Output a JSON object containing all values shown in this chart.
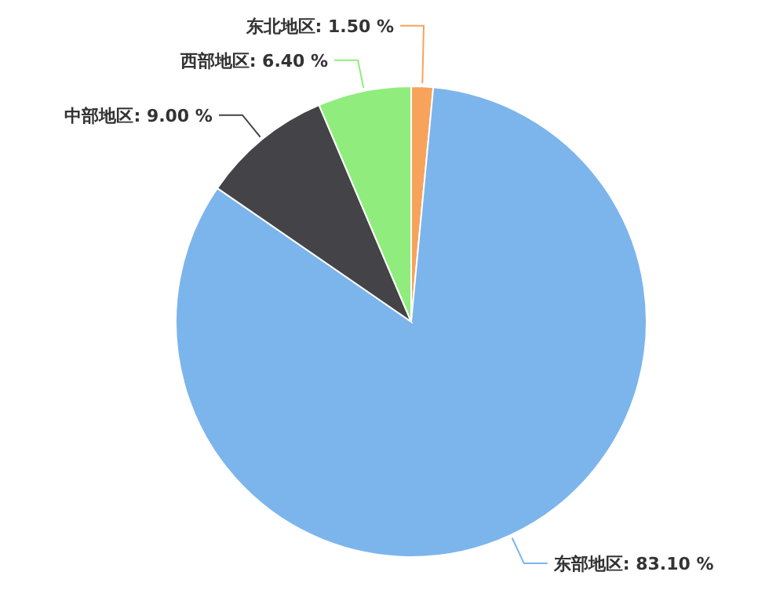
{
  "chart_data": {
    "type": "pie",
    "categories": [
      "东北地区",
      "东部地区",
      "中部地区",
      "西部地区"
    ],
    "values": [
      1.5,
      83.1,
      9.0,
      6.4
    ],
    "colors": [
      "#f7a35c",
      "#7cb5ec",
      "#434348",
      "#90ed7d"
    ],
    "value_labels": [
      "1.50 %",
      "83.10 %",
      "9.00 %",
      "6.40 %"
    ]
  }
}
